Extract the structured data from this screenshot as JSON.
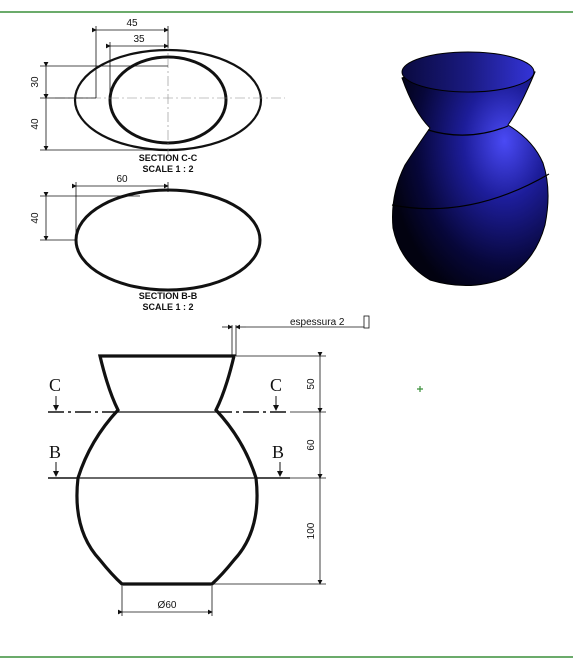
{
  "section_c": {
    "dim_outer_width": "45",
    "dim_inner_width": "35",
    "dim_upper_height": "30",
    "dim_lower_height": "40",
    "title": "SECTION C-C",
    "scale": "SCALE 1 : 2"
  },
  "section_b": {
    "dim_width": "60",
    "dim_height": "40",
    "title": "SECTION B-B",
    "scale": "SCALE 1 : 2"
  },
  "front_view": {
    "thickness_note": "espessura 2",
    "label_c_left": "C",
    "label_c_right": "C",
    "label_b_left": "B",
    "label_b_right": "B",
    "dim_neck_height": "50",
    "dim_shoulder_height": "60",
    "dim_body_height": "100",
    "dim_base_diameter": "Ø60"
  },
  "colors": {
    "frame_border": "#3a8f3a",
    "vase_shade_dark": "#05052a",
    "vase_shade_light": "#3c3cf0"
  }
}
